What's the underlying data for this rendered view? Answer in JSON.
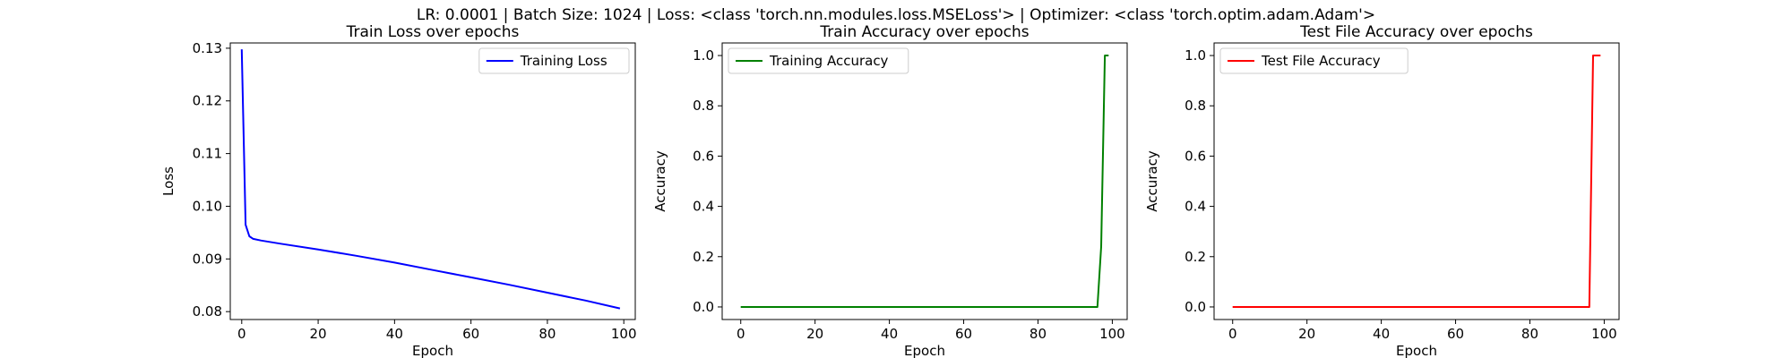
{
  "suptitle": "LR: 0.0001 | Batch Size: 1024 | Loss: <class 'torch.nn.modules.loss.MSELoss'> | Optimizer: <class 'torch.optim.adam.Adam'>",
  "chart_data": [
    {
      "type": "line",
      "title": "Train Loss over epochs",
      "xlabel": "Epoch",
      "ylabel": "Loss",
      "xlim": [
        -3,
        103
      ],
      "ylim": [
        0.0785,
        0.131
      ],
      "xticks": [
        0,
        20,
        40,
        60,
        80,
        100
      ],
      "yticks": [
        0.08,
        0.09,
        0.1,
        0.11,
        0.12,
        0.13
      ],
      "ytick_labels": [
        "0.08",
        "0.09",
        "0.10",
        "0.11",
        "0.12",
        "0.13"
      ],
      "legend_position": "top-right",
      "grid": false,
      "series": [
        {
          "name": "Training Loss",
          "color": "#0000ff",
          "x": [
            0,
            1,
            2,
            3,
            5,
            10,
            20,
            30,
            40,
            50,
            60,
            70,
            80,
            90,
            99
          ],
          "y": [
            0.1298,
            0.0965,
            0.0943,
            0.0938,
            0.0935,
            0.0929,
            0.0918,
            0.0906,
            0.0893,
            0.0879,
            0.0865,
            0.0851,
            0.0836,
            0.0821,
            0.0806
          ]
        }
      ]
    },
    {
      "type": "line",
      "title": "Train Accuracy over epochs",
      "xlabel": "Epoch",
      "ylabel": "Accuracy",
      "xlim": [
        -5,
        104
      ],
      "ylim": [
        -0.05,
        1.05
      ],
      "xticks": [
        0,
        20,
        40,
        60,
        80,
        100
      ],
      "yticks": [
        0.0,
        0.2,
        0.4,
        0.6,
        0.8,
        1.0
      ],
      "ytick_labels": [
        "0.0",
        "0.2",
        "0.4",
        "0.6",
        "0.8",
        "1.0"
      ],
      "legend_position": "top-left",
      "grid": false,
      "series": [
        {
          "name": "Training Accuracy",
          "color": "#008000",
          "x": [
            0,
            96,
            97,
            98,
            99
          ],
          "y": [
            0.0,
            0.0,
            0.24,
            1.0,
            1.0
          ]
        }
      ]
    },
    {
      "type": "line",
      "title": "Test File Accuracy over epochs",
      "xlabel": "Epoch",
      "ylabel": "Accuracy",
      "xlim": [
        -5,
        104
      ],
      "ylim": [
        -0.05,
        1.05
      ],
      "xticks": [
        0,
        20,
        40,
        60,
        80,
        100
      ],
      "yticks": [
        0.0,
        0.2,
        0.4,
        0.6,
        0.8,
        1.0
      ],
      "ytick_labels": [
        "0.0",
        "0.2",
        "0.4",
        "0.6",
        "0.8",
        "1.0"
      ],
      "legend_position": "top-left",
      "grid": false,
      "series": [
        {
          "name": "Test File Accuracy",
          "color": "#ff0000",
          "x": [
            0,
            96,
            97,
            98,
            99
          ],
          "y": [
            0.0,
            0.0,
            1.0,
            1.0,
            1.0
          ]
        }
      ]
    }
  ]
}
